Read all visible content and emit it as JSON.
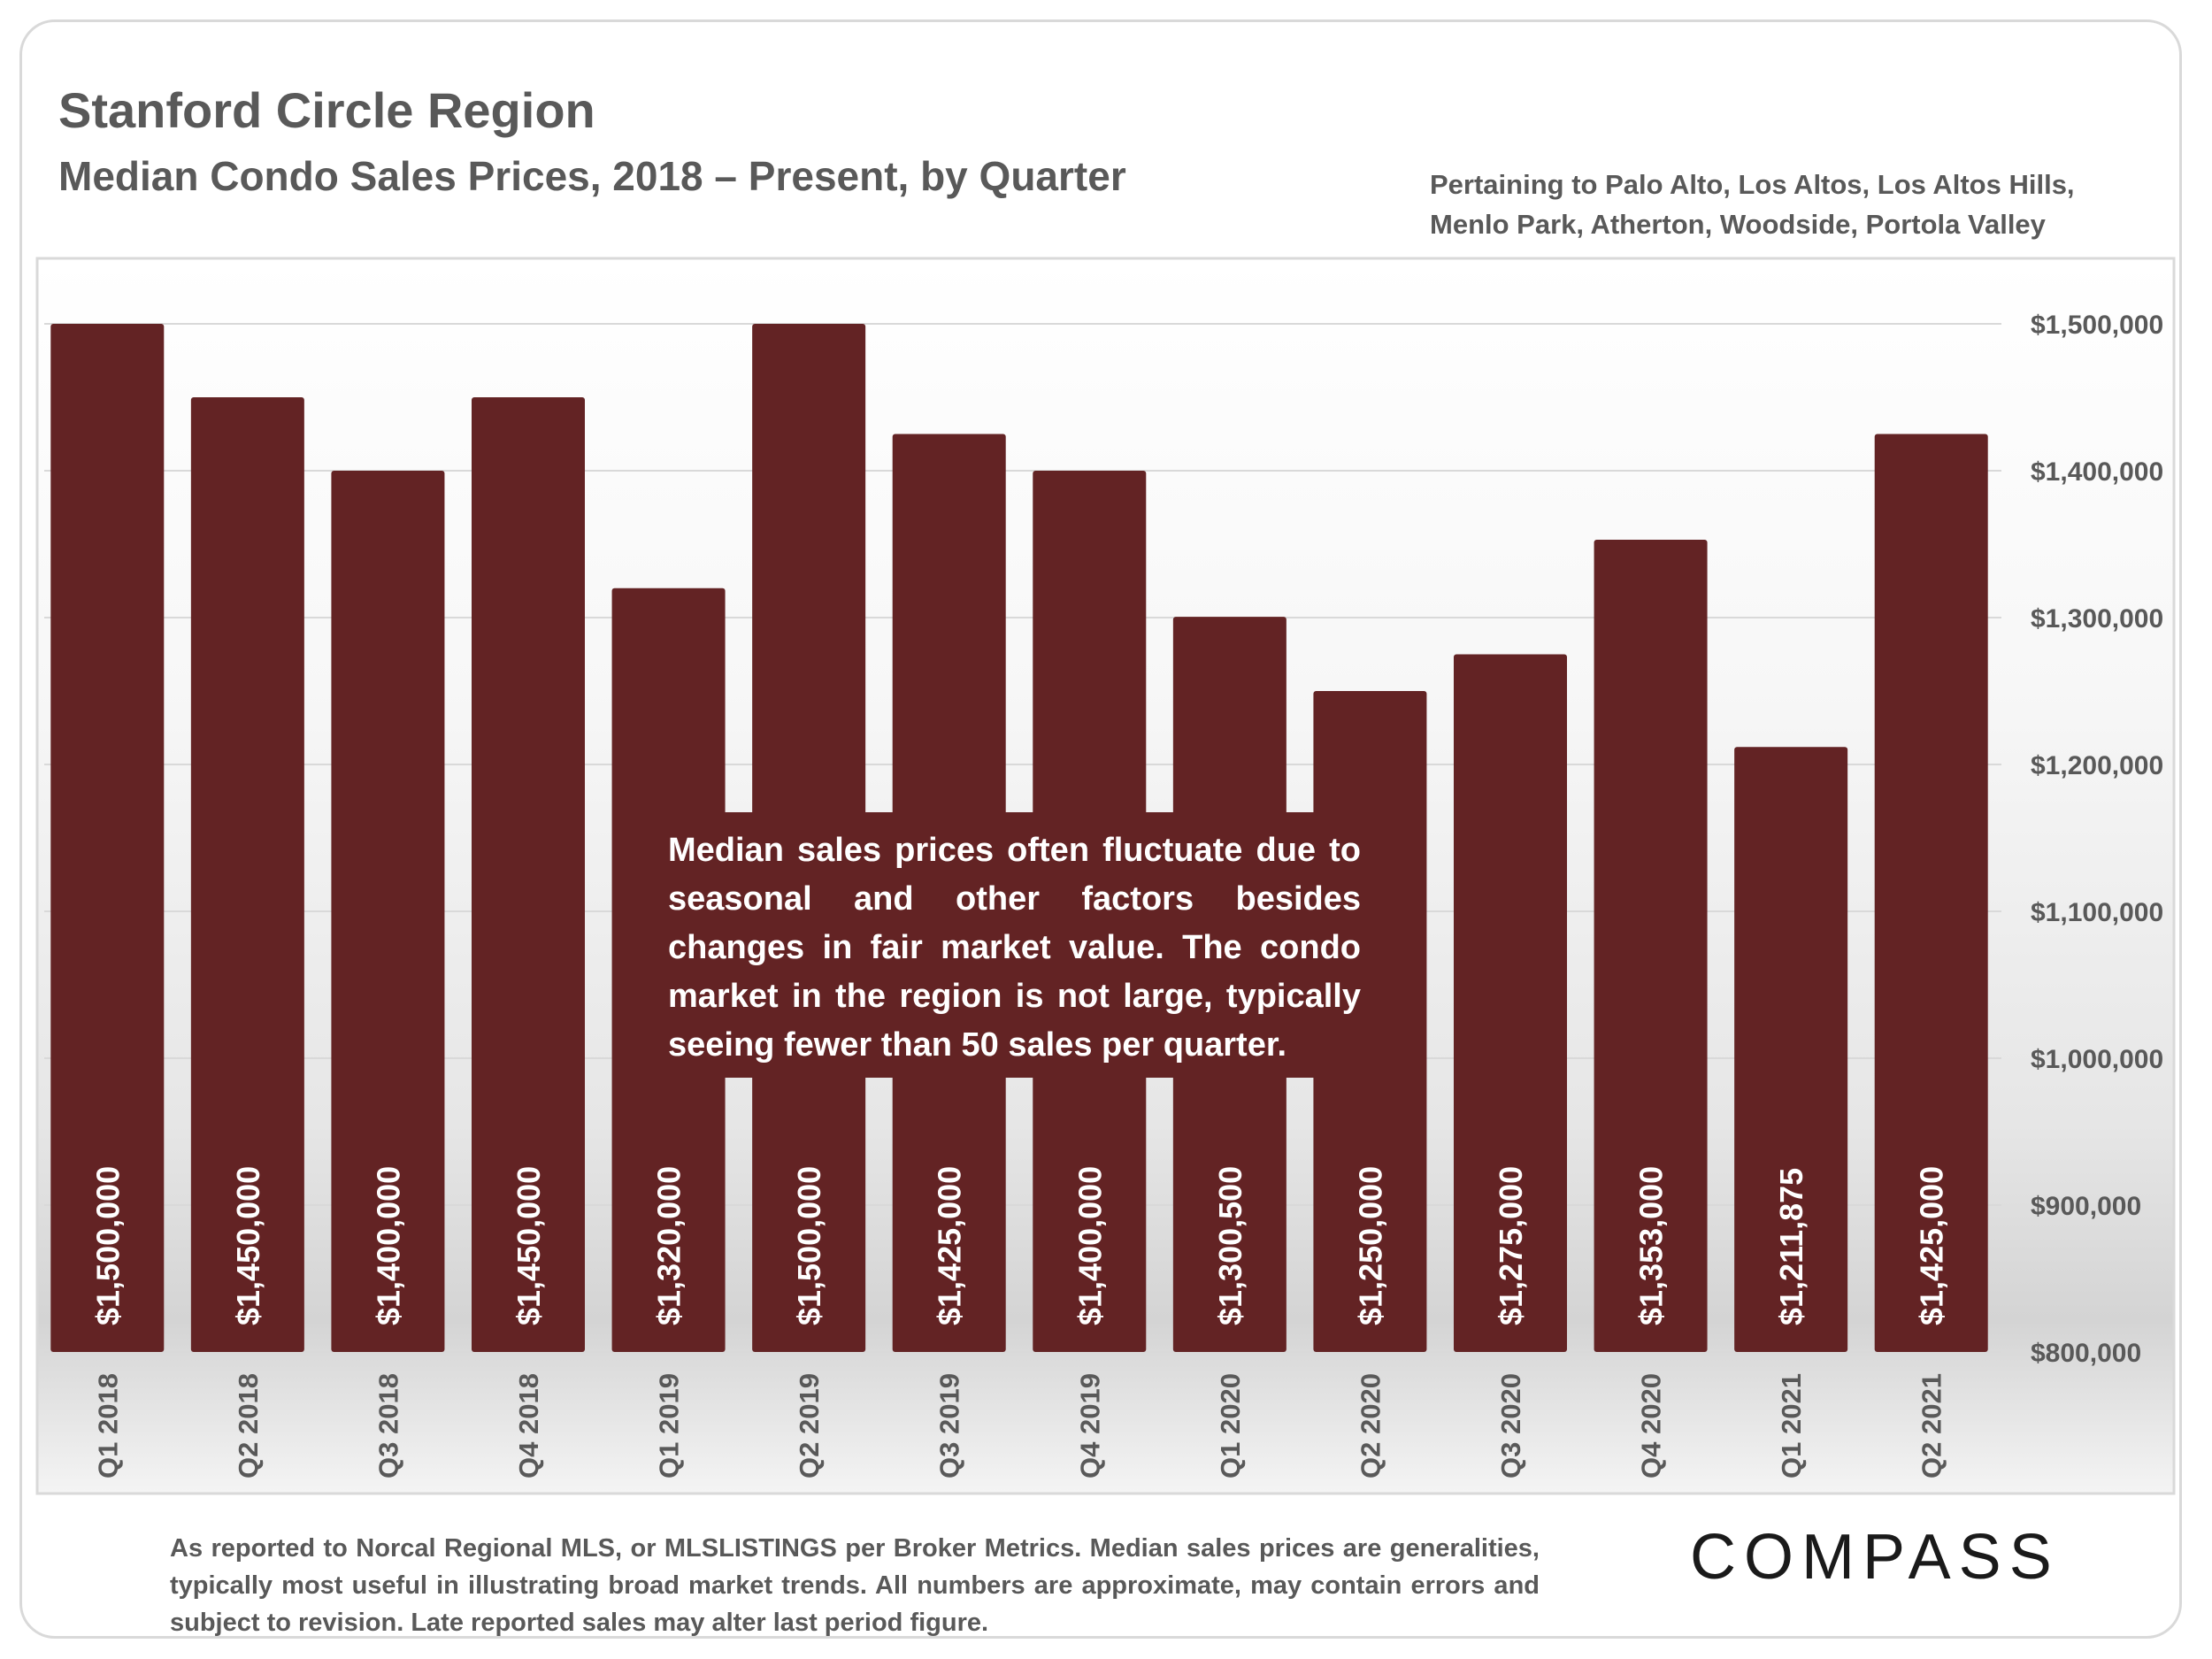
{
  "header": {
    "title": "Stanford Circle Region",
    "subtitle": "Median Condo Sales Prices, 2018 – Present, by Quarter",
    "region_note": "Pertaining to Palo Alto, Los Altos, Los Altos Hills, Menlo Park, Atherton, Woodside, Portola Valley"
  },
  "annotation": "Median sales prices often fluctuate due to seasonal and other factors besides changes in fair market value. The condo market in the region is not large, typically seeing fewer than 50 sales per quarter.",
  "footnote": "As reported to Norcal Regional MLS, or MLSLISTINGS per Broker Metrics. Median sales prices are generalities, typically most useful in illustrating broad market trends. All numbers are approximate, may contain errors and subject to revision. Late reported sales may alter last period figure.",
  "logo": "COMPASS",
  "colors": {
    "bar": "#632324",
    "text": "#595959",
    "grid": "#d9d9d9"
  },
  "chart_data": {
    "type": "bar",
    "categories": [
      "Q1 2018",
      "Q2 2018",
      "Q3 2018",
      "Q4 2018",
      "Q1 2019",
      "Q2 2019",
      "Q3 2019",
      "Q4 2019",
      "Q1 2020",
      "Q2 2020",
      "Q3 2020",
      "Q4 2020",
      "Q1 2021",
      "Q2 2021"
    ],
    "values": [
      1500000,
      1450000,
      1400000,
      1450000,
      1320000,
      1500000,
      1425000,
      1400000,
      1300500,
      1250000,
      1275000,
      1353000,
      1211875,
      1425000
    ],
    "value_labels": [
      "$1,500,000",
      "$1,450,000",
      "$1,400,000",
      "$1,450,000",
      "$1,320,000",
      "$1,500,000",
      "$1,425,000",
      "$1,400,000",
      "$1,300,500",
      "$1,250,000",
      "$1,275,000",
      "$1,353,000",
      "$1,211,875",
      "$1,425,000"
    ],
    "ylim": [
      800000,
      1500000
    ],
    "y_ticks": [
      800000,
      900000,
      1000000,
      1100000,
      1200000,
      1300000,
      1400000,
      1500000
    ],
    "y_tick_labels": [
      "$800,000",
      "$900,000",
      "$1,000,000",
      "$1,100,000",
      "$1,200,000",
      "$1,300,000",
      "$1,400,000",
      "$1,500,000"
    ],
    "y_axis_side": "right",
    "grid": true,
    "legend": "none"
  }
}
